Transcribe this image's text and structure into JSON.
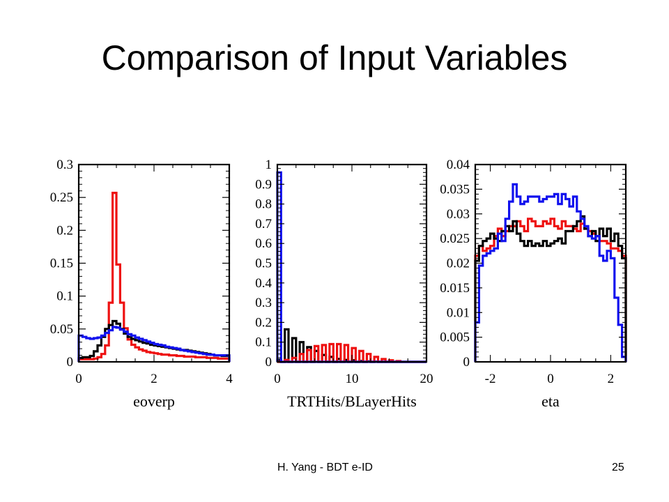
{
  "slide": {
    "title": "Comparison of Input Variables",
    "footer_author": "H. Yang - BDT e-ID",
    "page_number": "25"
  },
  "colors": {
    "red": "#ee1111",
    "black": "#000000",
    "blue": "#1111ee"
  },
  "chart_data": [
    {
      "type": "line",
      "step": true,
      "xlabel": "eoverp",
      "xlim": [
        0,
        4
      ],
      "ylim": [
        0,
        0.3
      ],
      "xticks": [
        0,
        2,
        4
      ],
      "yticks": [
        0,
        0.05,
        0.1,
        0.15,
        0.2,
        0.25,
        0.3
      ],
      "ytick_labels": [
        "0",
        "0.05",
        "0.1",
        "0.15",
        "0.2",
        "0.25",
        "0.3"
      ],
      "edges": [
        0,
        0.1,
        0.2,
        0.3,
        0.4,
        0.5,
        0.6,
        0.7,
        0.8,
        0.9,
        1.0,
        1.1,
        1.2,
        1.3,
        1.4,
        1.5,
        1.6,
        1.7,
        1.8,
        1.9,
        2.0,
        2.1,
        2.2,
        2.3,
        2.4,
        2.5,
        2.6,
        2.7,
        2.8,
        2.9,
        3.0,
        3.1,
        3.2,
        3.3,
        3.4,
        3.5,
        3.6,
        3.7,
        3.8,
        3.9,
        4.0
      ],
      "series": [
        {
          "color": "red",
          "values": [
            0.004,
            0.004,
            0.004,
            0.004,
            0.005,
            0.007,
            0.012,
            0.025,
            0.09,
            0.257,
            0.148,
            0.09,
            0.051,
            0.034,
            0.026,
            0.022,
            0.019,
            0.017,
            0.015,
            0.014,
            0.013,
            0.012,
            0.011,
            0.011,
            0.01,
            0.01,
            0.009,
            0.009,
            0.008,
            0.008,
            0.008,
            0.007,
            0.007,
            0.007,
            0.006,
            0.006,
            0.006,
            0.005,
            0.005,
            0.005
          ]
        },
        {
          "color": "black",
          "values": [
            0.006,
            0.007,
            0.007,
            0.009,
            0.016,
            0.025,
            0.038,
            0.05,
            0.056,
            0.062,
            0.058,
            0.05,
            0.043,
            0.038,
            0.035,
            0.033,
            0.031,
            0.029,
            0.028,
            0.026,
            0.025,
            0.024,
            0.023,
            0.022,
            0.021,
            0.02,
            0.019,
            0.018,
            0.018,
            0.017,
            0.016,
            0.015,
            0.014,
            0.013,
            0.012,
            0.011,
            0.01,
            0.01,
            0.009,
            0.009
          ]
        },
        {
          "color": "blue",
          "values": [
            0.04,
            0.038,
            0.036,
            0.035,
            0.036,
            0.037,
            0.04,
            0.044,
            0.048,
            0.053,
            0.052,
            0.049,
            0.046,
            0.042,
            0.04,
            0.037,
            0.035,
            0.033,
            0.031,
            0.029,
            0.027,
            0.026,
            0.025,
            0.023,
            0.022,
            0.021,
            0.02,
            0.018,
            0.017,
            0.016,
            0.015,
            0.014,
            0.013,
            0.012,
            0.011,
            0.011,
            0.01,
            0.01,
            0.01,
            0.01
          ]
        }
      ]
    },
    {
      "type": "line",
      "step": true,
      "xlabel": "TRTHits/BLayerHits",
      "xlim": [
        0,
        20
      ],
      "ylim": [
        0,
        1
      ],
      "xticks": [
        0,
        10,
        20
      ],
      "yticks": [
        0,
        0.1,
        0.2,
        0.3,
        0.4,
        0.5,
        0.6,
        0.7,
        0.8,
        0.9,
        1
      ],
      "ytick_labels": [
        "0",
        "0.1",
        "0.2",
        "0.3",
        "0.4",
        "0.5",
        "0.6",
        "0.7",
        "0.8",
        "0.9",
        "1"
      ],
      "edges": [
        0,
        0.5,
        1,
        1.5,
        2,
        2.5,
        3,
        3.5,
        4,
        4.5,
        5,
        5.5,
        6,
        6.5,
        7,
        7.5,
        8,
        8.5,
        9,
        9.5,
        10,
        10.5,
        11,
        11.5,
        12,
        12.5,
        13,
        13.5,
        14,
        14.5,
        15,
        15.5,
        16,
        16.5,
        17,
        17.5,
        18,
        18.5,
        19,
        19.5,
        20
      ],
      "series": [
        {
          "color": "black",
          "values": [
            0.01,
            0.0,
            0.165,
            0.0,
            0.12,
            0.0,
            0.1,
            0.0,
            0.075,
            0.0,
            0.055,
            0.0,
            0.035,
            0.0,
            0.025,
            0.0,
            0.015,
            0.0,
            0.01,
            0.0,
            0.008,
            0.0,
            0.004,
            0.0,
            0.002,
            0.0,
            0.001,
            0.0,
            0.0,
            0.0,
            0.0,
            0.0,
            0.0,
            0.0,
            0.0,
            0.0,
            0.0,
            0.0,
            0.0,
            0.0
          ]
        },
        {
          "color": "red",
          "values": [
            0.0,
            0.0,
            0.01,
            0.0,
            0.02,
            0.0,
            0.04,
            0.0,
            0.06,
            0.0,
            0.08,
            0.0,
            0.085,
            0.0,
            0.09,
            0.0,
            0.09,
            0.0,
            0.085,
            0.0,
            0.07,
            0.0,
            0.055,
            0.0,
            0.04,
            0.0,
            0.025,
            0.0,
            0.014,
            0.0,
            0.008,
            0.0,
            0.004,
            0.0,
            0.0,
            0.0,
            0.0,
            0.0,
            0.0,
            0.0
          ]
        },
        {
          "color": "blue",
          "values": [
            0.96,
            0.0,
            0.0,
            0.0,
            0.0,
            0.0,
            0.0,
            0.0,
            0.0,
            0.0,
            0.0,
            0.0,
            0.0,
            0.0,
            0.0,
            0.0,
            0.0,
            0.0,
            0.0,
            0.0,
            0.0,
            0.0,
            0.0,
            0.0,
            0.0,
            0.0,
            0.0,
            0.0,
            0.0,
            0.0,
            0.0,
            0.0,
            0.0,
            0.0,
            0.0,
            0.0,
            0.0,
            0.0,
            0.0,
            0.0
          ]
        }
      ]
    },
    {
      "type": "line",
      "step": true,
      "xlabel": "eta",
      "xlim": [
        -2.5,
        2.5
      ],
      "ylim": [
        0,
        0.04
      ],
      "xticks": [
        -2,
        0,
        2
      ],
      "yticks": [
        0,
        0.005,
        0.01,
        0.015,
        0.02,
        0.025,
        0.03,
        0.035,
        0.04
      ],
      "ytick_labels": [
        "0",
        "0.005",
        "0.01",
        "0.015",
        "0.02",
        "0.025",
        "0.03",
        "0.035",
        "0.04"
      ],
      "edges": [
        -2.5,
        -2.375,
        -2.25,
        -2.125,
        -2.0,
        -1.875,
        -1.75,
        -1.625,
        -1.5,
        -1.375,
        -1.25,
        -1.125,
        -1.0,
        -0.875,
        -0.75,
        -0.625,
        -0.5,
        -0.375,
        -0.25,
        -0.125,
        0.0,
        0.125,
        0.25,
        0.375,
        0.5,
        0.625,
        0.75,
        0.875,
        1.0,
        1.125,
        1.25,
        1.375,
        1.5,
        1.625,
        1.75,
        1.875,
        2.0,
        2.125,
        2.25,
        2.375,
        2.5
      ],
      "series": [
        {
          "color": "red",
          "values": [
            0.0215,
            0.0235,
            0.0225,
            0.023,
            0.0235,
            0.0255,
            0.027,
            0.0255,
            0.0265,
            0.0275,
            0.0275,
            0.0285,
            0.0275,
            0.0265,
            0.029,
            0.0285,
            0.0275,
            0.0275,
            0.0285,
            0.028,
            0.029,
            0.0275,
            0.027,
            0.0285,
            0.0275,
            0.0275,
            0.027,
            0.0265,
            0.028,
            0.027,
            0.0265,
            0.026,
            0.0255,
            0.0245,
            0.0245,
            0.024,
            0.023,
            0.023,
            0.0225,
            0.0215
          ]
        },
        {
          "color": "black",
          "values": [
            0.0205,
            0.0235,
            0.0245,
            0.025,
            0.026,
            0.025,
            0.0245,
            0.0265,
            0.0275,
            0.0265,
            0.0285,
            0.026,
            0.0245,
            0.0235,
            0.0245,
            0.0235,
            0.024,
            0.0235,
            0.0245,
            0.0235,
            0.024,
            0.0245,
            0.025,
            0.024,
            0.0265,
            0.0265,
            0.0275,
            0.0285,
            0.0295,
            0.027,
            0.0255,
            0.0265,
            0.0245,
            0.027,
            0.0255,
            0.027,
            0.0245,
            0.026,
            0.0235,
            0.021
          ]
        },
        {
          "color": "blue",
          "values": [
            0.008,
            0.0195,
            0.0215,
            0.022,
            0.0225,
            0.023,
            0.026,
            0.0245,
            0.029,
            0.0325,
            0.036,
            0.0335,
            0.032,
            0.0325,
            0.0335,
            0.0335,
            0.0335,
            0.0325,
            0.033,
            0.0335,
            0.0335,
            0.034,
            0.032,
            0.034,
            0.033,
            0.0315,
            0.0335,
            0.0305,
            0.029,
            0.0275,
            0.0255,
            0.025,
            0.0255,
            0.0215,
            0.0205,
            0.0225,
            0.021,
            0.013,
            0.0075,
            0.001
          ]
        }
      ]
    }
  ]
}
